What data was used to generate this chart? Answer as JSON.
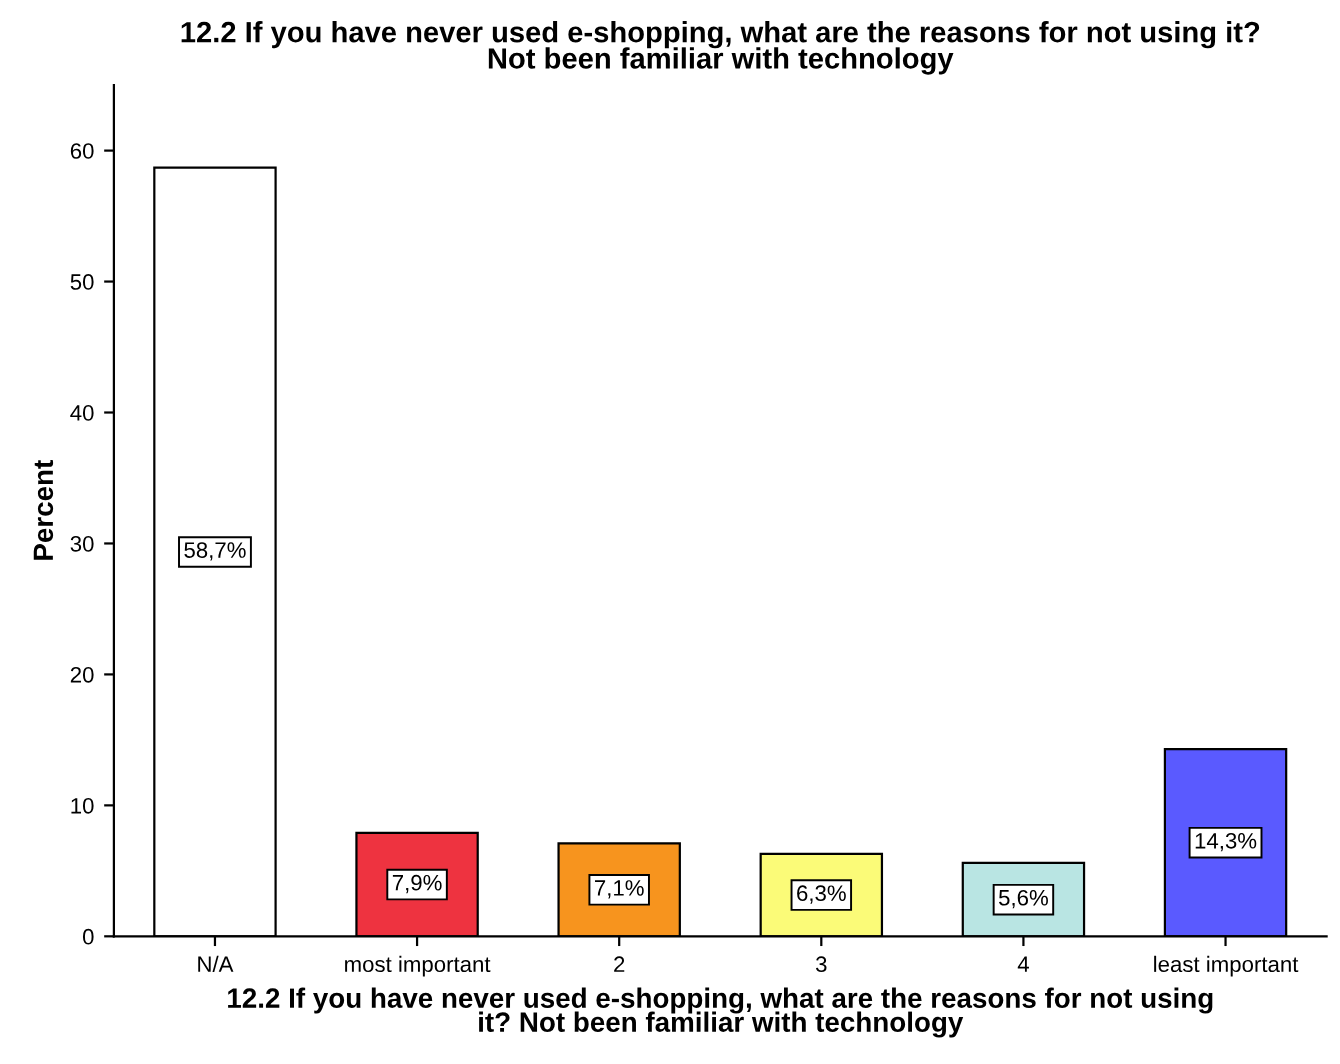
{
  "chart_data": {
    "type": "bar",
    "title": "12.2 If you have never used e-shopping, what are the reasons for not using it?\nNot been familiar with technology",
    "xlabel": "12.2 If you have never used e-shopping, what are the reasons for not using\nit? Not been familiar with technology",
    "ylabel": "Percent",
    "categories": [
      "N/A",
      "most important",
      "2",
      "3",
      "4",
      "least important"
    ],
    "values": [
      58.7,
      7.9,
      7.1,
      6.3,
      5.6,
      14.3
    ],
    "value_labels": [
      "58,7%",
      "7,9%",
      "7,1%",
      "6,3%",
      "5,6%",
      "14,3%"
    ],
    "colors": [
      "#ffffff",
      "#ee3340",
      "#f7941e",
      "#fbfb78",
      "#b9e5e3",
      "#5a5aff"
    ],
    "ylim": [
      0,
      65
    ],
    "yticks": [
      0,
      10,
      20,
      30,
      40,
      50,
      60
    ],
    "grid": false
  }
}
